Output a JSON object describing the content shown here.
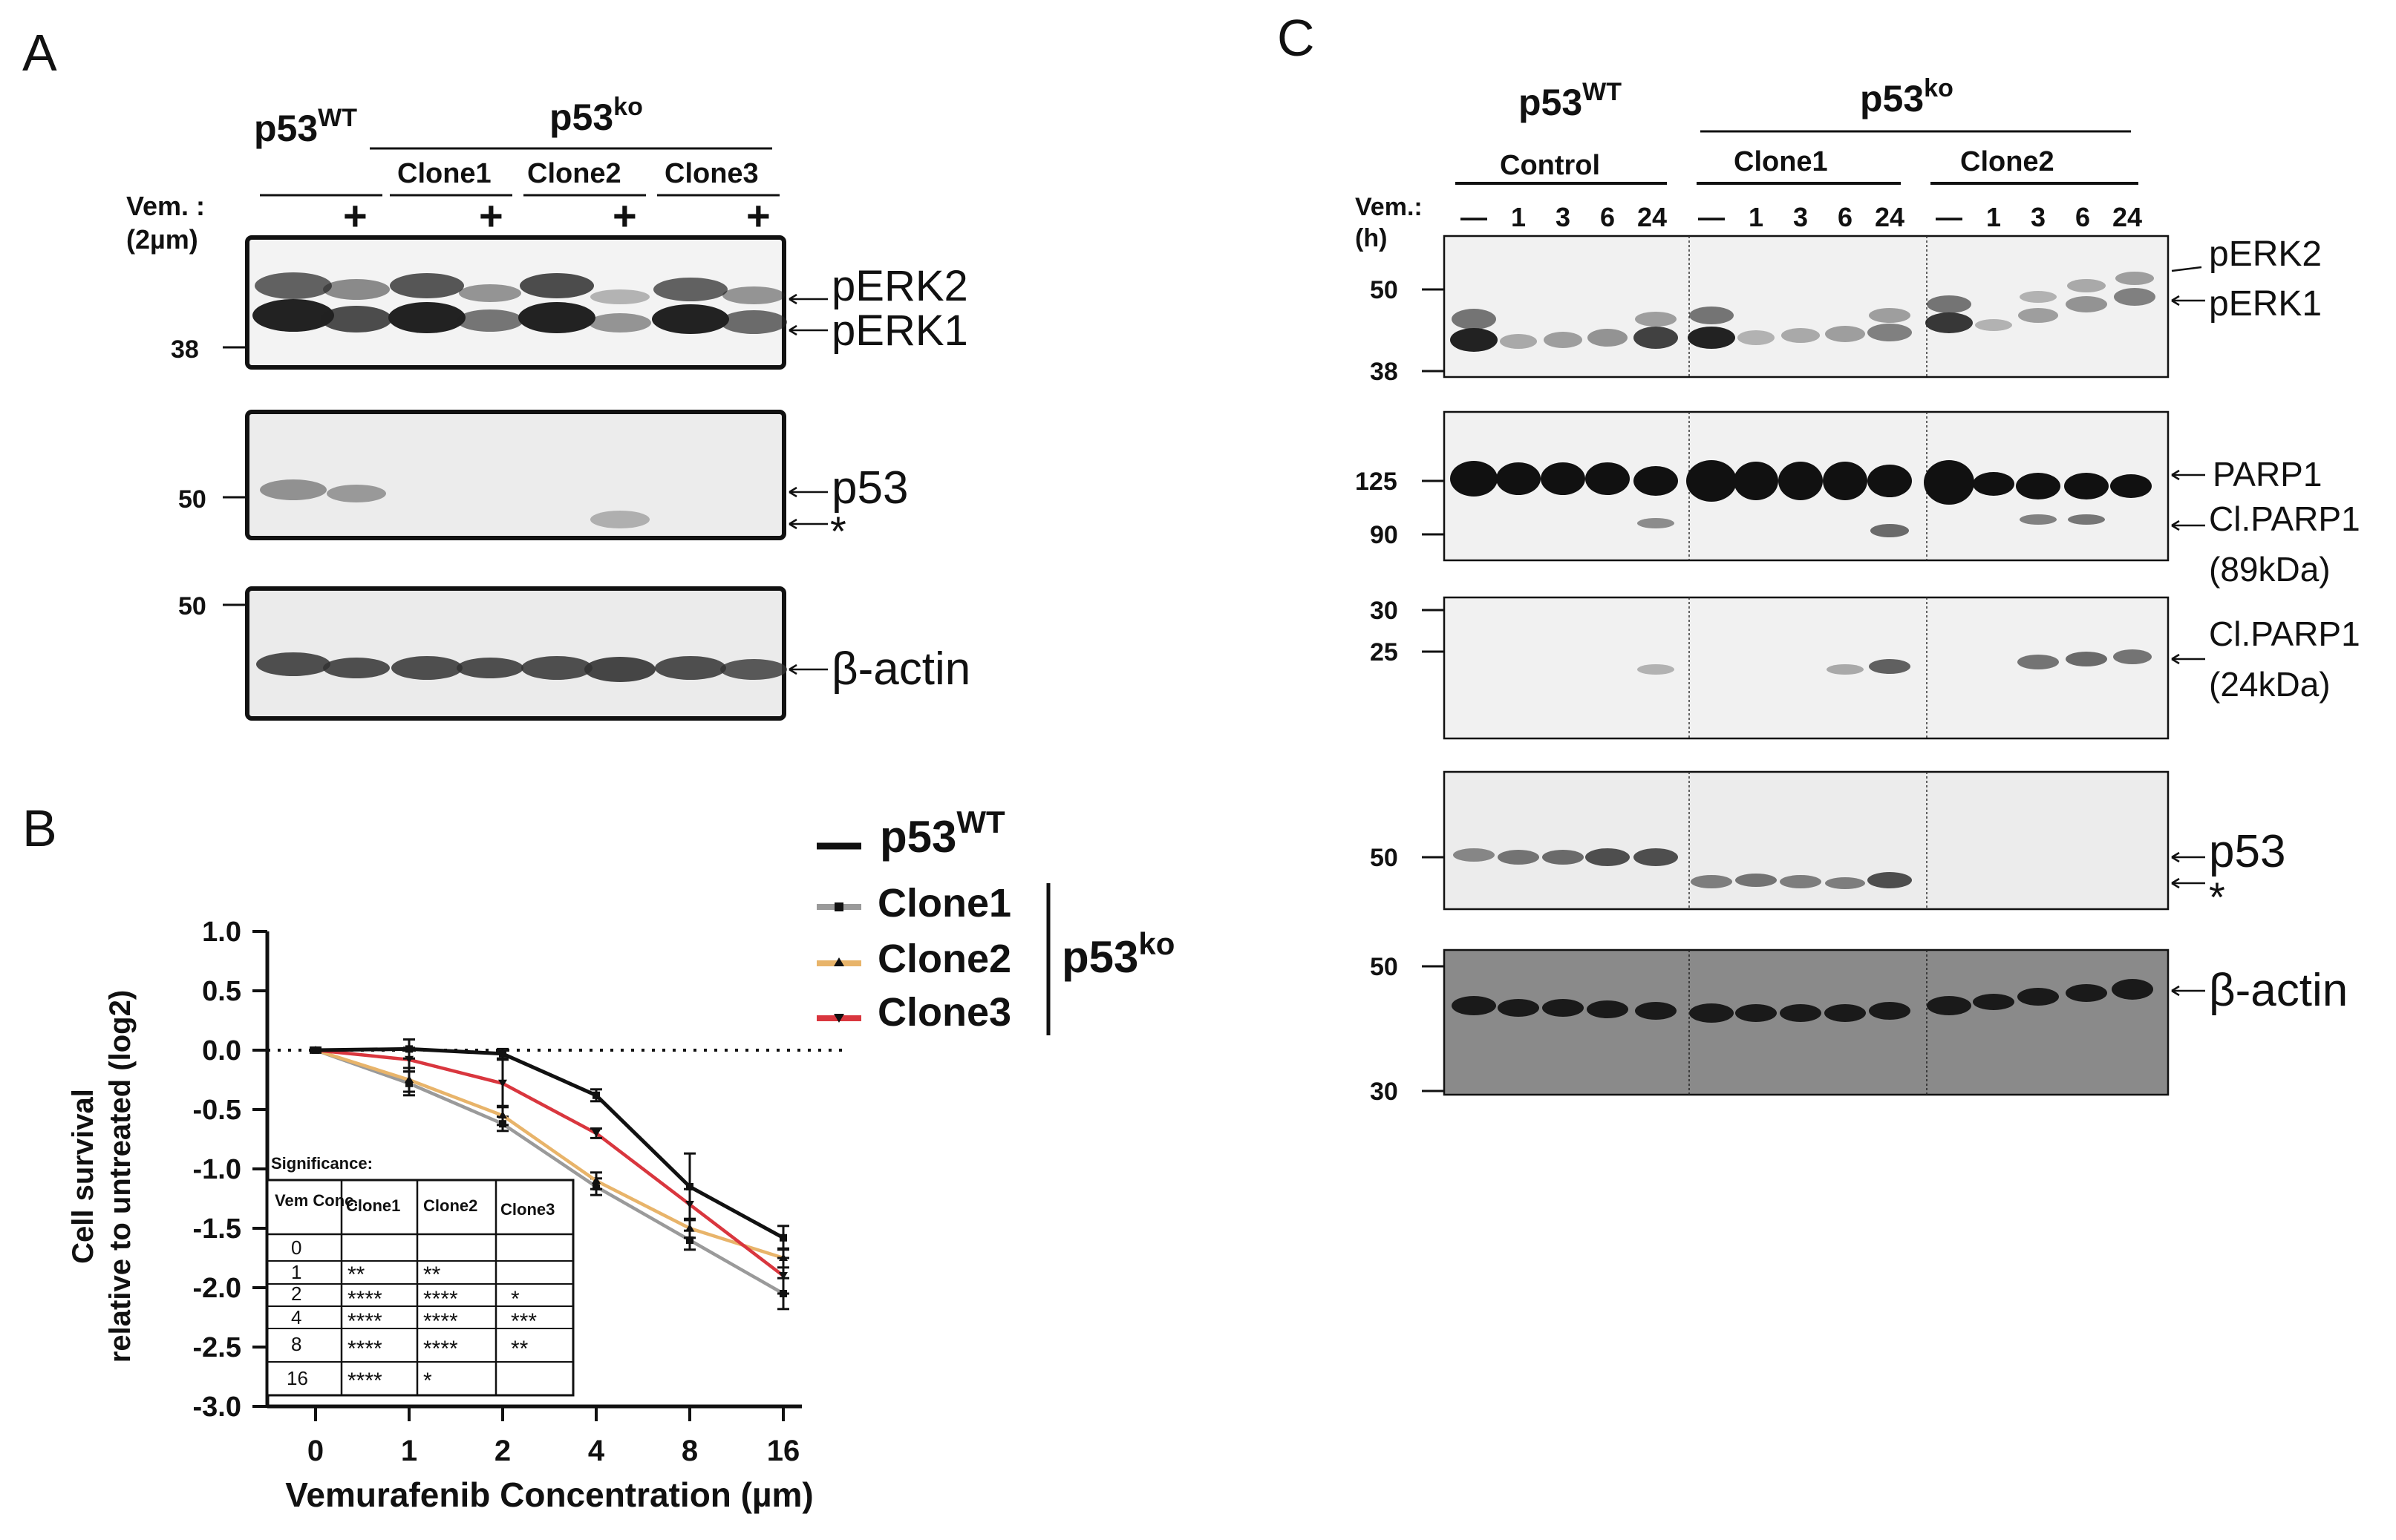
{
  "panel_a": {
    "label": "A",
    "group_wt": "p53",
    "group_wt_sup": "WT",
    "group_ko": "p53",
    "group_ko_sup": "ko",
    "clones": [
      "Clone1",
      "Clone2",
      "Clone3"
    ],
    "vem_label": "Vem. :",
    "vem_conc": "(2µm)",
    "plus": "+",
    "blots": [
      {
        "labels": [
          "pERK2",
          "pERK1"
        ],
        "markers": [
          "38"
        ]
      },
      {
        "labels": [
          "p53",
          "*"
        ],
        "markers": [
          "50"
        ]
      },
      {
        "labels": [
          "β-actin"
        ],
        "markers": [
          "50"
        ]
      }
    ]
  },
  "panel_b": {
    "label": "B",
    "legend": {
      "wt": "p53",
      "wt_sup": "WT",
      "clones": [
        "Clone1",
        "Clone2",
        "Clone3"
      ],
      "ko": "p53",
      "ko_sup": "ko"
    },
    "sig_table": {
      "title": "Significance:",
      "header": [
        "Vem Conc.",
        "Clone1",
        "Clone2",
        "Clone3"
      ],
      "rows": [
        [
          "0",
          "",
          "",
          ""
        ],
        [
          "1",
          "**",
          "**",
          ""
        ],
        [
          "2",
          "****",
          "****",
          "*"
        ],
        [
          "4",
          "****",
          "****",
          "***"
        ],
        [
          "8",
          "****",
          "****",
          "**"
        ],
        [
          "16",
          "****",
          "*",
          ""
        ]
      ]
    }
  },
  "panel_c": {
    "label": "C",
    "group_wt": "p53",
    "group_wt_sup": "WT",
    "group_ko": "p53",
    "group_ko_sup": "ko",
    "subgroups": [
      "Control",
      "Clone1",
      "Clone2"
    ],
    "vem_label": "Vem.:",
    "hours_label": "(h)",
    "timepoints": [
      "—",
      "1",
      "3",
      "6",
      "24"
    ],
    "blots": [
      {
        "labels": [
          "pERK2",
          "pERK1"
        ],
        "markers": [
          "50",
          "38"
        ]
      },
      {
        "labels": [
          "PARP1",
          "Cl.PARP1",
          "(89kDa)"
        ],
        "markers": [
          "125",
          "90"
        ]
      },
      {
        "labels": [
          "Cl.PARP1",
          "(24kDa)"
        ],
        "markers": [
          "30",
          "25"
        ]
      },
      {
        "labels": [
          "p53",
          "*"
        ],
        "markers": [
          "50"
        ]
      },
      {
        "labels": [
          "β-actin"
        ],
        "markers": [
          "50",
          "30"
        ]
      }
    ]
  },
  "chart_data": {
    "type": "line",
    "title": "",
    "xlabel": "Vemurafenib Concentration (µm)",
    "ylabel": "Cell survival",
    "ylabel2": "relative to untreated (log2)",
    "categories": [
      "0",
      "1",
      "2",
      "4",
      "8",
      "16"
    ],
    "ylim": [
      -3.0,
      1.0
    ],
    "yticks": [
      "1.0",
      "0.5",
      "0.0",
      "-0.5",
      "-1.0",
      "-1.5",
      "-2.0",
      "-2.5",
      "-3.0"
    ],
    "ytick_values": [
      1.0,
      0.5,
      0.0,
      -0.5,
      -1.0,
      -1.5,
      -2.0,
      -2.5,
      -3.0
    ],
    "reference_line": 0,
    "series": [
      {
        "name": "p53WT",
        "color": "#111111",
        "values": [
          0.0,
          0.01,
          -0.03,
          -0.38,
          -1.15,
          -1.58
        ],
        "err": [
          0.02,
          0.08,
          0.04,
          0.05,
          0.28,
          0.1
        ]
      },
      {
        "name": "Clone1",
        "color": "#9a9a9a",
        "values": [
          0.0,
          -0.28,
          -0.62,
          -1.15,
          -1.6,
          -2.05
        ],
        "err": [
          0.02,
          0.1,
          0.06,
          0.07,
          0.08,
          0.13
        ]
      },
      {
        "name": "Clone2",
        "color": "#e8b46a",
        "values": [
          0.0,
          -0.25,
          -0.55,
          -1.1,
          -1.5,
          -1.75
        ],
        "err": [
          0.02,
          0.1,
          0.08,
          0.07,
          0.08,
          0.08
        ]
      },
      {
        "name": "Clone3",
        "color": "#d9363e",
        "values": [
          0.0,
          -0.08,
          -0.28,
          -0.7,
          -1.3,
          -1.9
        ],
        "err": [
          0.02,
          0.1,
          0.2,
          0.04,
          0.13,
          0.15
        ]
      }
    ]
  }
}
